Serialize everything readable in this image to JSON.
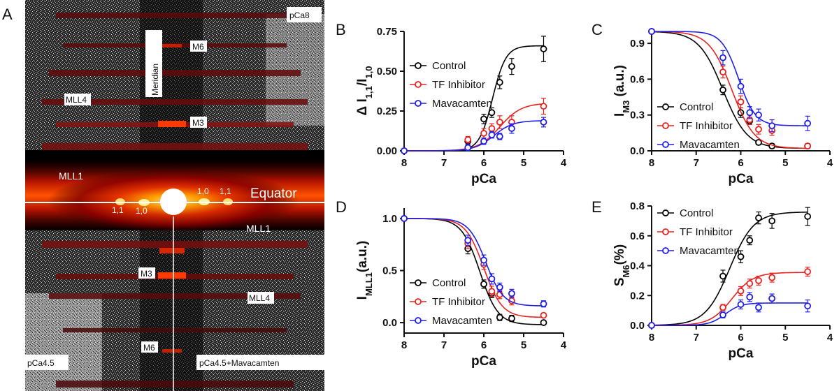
{
  "panel_labels": [
    "A",
    "B",
    "C",
    "D",
    "E"
  ],
  "xray_panel": {
    "labels": {
      "pca8": "pCa8",
      "pca45": "pCa4.5",
      "pca45_mava": "pCa4.5+Mavacamten",
      "meridian": "Meridian",
      "equator": "Equator",
      "m6_top": "M6",
      "m3_top": "M3",
      "mll4_top": "MLL4",
      "mll1_left": "MLL1",
      "mll1_right": "MLL1",
      "m3_bottom": "M3",
      "mll4_bottom": "MLL4",
      "m6_bottom": "M6",
      "r10_left": "1,0",
      "r11_left": "1,1",
      "r10_right": "1,0",
      "r11_right": "1,1"
    }
  },
  "colors": {
    "Control": "#000000",
    "TF Inhibitor": "#e8231f",
    "Mavacamten": "#1f1fe8"
  },
  "chart_data": [
    {
      "panel": "B",
      "type": "scatter",
      "xlabel": "pCa",
      "ylabel": "Δ I1,1/I1,0",
      "xlim": [
        8,
        4
      ],
      "ylim": [
        0,
        0.75
      ],
      "xticks": [
        8,
        7,
        6,
        5,
        4
      ],
      "yticks": [
        0.0,
        0.25,
        0.5,
        0.75
      ],
      "ytick_labels": [
        "0.00",
        "0.25",
        "0.50",
        "0.75"
      ],
      "legend_position": "top-left",
      "series": [
        {
          "name": "Control",
          "x": [
            8,
            6.4,
            6.0,
            5.8,
            5.6,
            5.3,
            4.5
          ],
          "y": [
            0.0,
            0.06,
            0.2,
            0.24,
            0.43,
            0.53,
            0.64
          ],
          "err": [
            0.0,
            0.02,
            0.03,
            0.03,
            0.04,
            0.05,
            0.08
          ],
          "fit": {
            "bottom": 0,
            "top": 0.66,
            "pca50": 5.78,
            "hill": 2.6
          }
        },
        {
          "name": "TF Inhibitor",
          "x": [
            8,
            6.4,
            6.0,
            5.8,
            5.6,
            5.3,
            4.5
          ],
          "y": [
            0.0,
            0.07,
            0.11,
            0.14,
            0.18,
            0.18,
            0.28
          ],
          "err": [
            0.0,
            0.02,
            0.03,
            0.03,
            0.04,
            0.04,
            0.05
          ],
          "fit": {
            "bottom": 0,
            "top": 0.3,
            "pca50": 5.6,
            "hill": 1.6
          }
        },
        {
          "name": "Mavacamten",
          "x": [
            8,
            6.4,
            6.0,
            5.8,
            5.6,
            5.3,
            4.5
          ],
          "y": [
            0.0,
            0.02,
            0.06,
            0.1,
            0.09,
            0.14,
            0.18
          ],
          "err": [
            0.0,
            0.02,
            0.02,
            0.02,
            0.02,
            0.03,
            0.03
          ],
          "fit": {
            "bottom": 0,
            "top": 0.19,
            "pca50": 5.75,
            "hill": 1.8
          }
        }
      ]
    },
    {
      "panel": "C",
      "type": "scatter",
      "xlabel": "pCa",
      "ylabel": "IM3 (a.u.)",
      "xlim": [
        8,
        4
      ],
      "ylim": [
        0,
        1.0
      ],
      "xticks": [
        8,
        7,
        6,
        5,
        4
      ],
      "yticks": [
        0.0,
        0.3,
        0.6,
        0.9
      ],
      "ytick_labels": [
        "0.0",
        "0.3",
        "0.6",
        "0.9"
      ],
      "legend_position": "bottom-left",
      "series": [
        {
          "name": "Control",
          "x": [
            8,
            6.4,
            6.0,
            5.8,
            5.6,
            5.3,
            4.5
          ],
          "y": [
            1.0,
            0.51,
            0.32,
            0.25,
            0.07,
            0.04,
            0.04
          ],
          "err": [
            0.0,
            0.04,
            0.04,
            0.03,
            0.02,
            0.02,
            0.02
          ],
          "fit": {
            "bottom": 0.02,
            "top": 1.0,
            "pca50": 6.4,
            "hill": 1.6
          }
        },
        {
          "name": "TF Inhibitor",
          "x": [
            8,
            6.4,
            6.0,
            5.8,
            5.6,
            5.3,
            4.5
          ],
          "y": [
            1.0,
            0.66,
            0.41,
            0.26,
            0.18,
            0.17,
            0.04
          ],
          "err": [
            0.0,
            0.05,
            0.05,
            0.04,
            0.04,
            0.04,
            0.02
          ],
          "fit": {
            "bottom": 0.02,
            "top": 1.0,
            "pca50": 6.2,
            "hill": 1.7
          }
        },
        {
          "name": "Mavacamten",
          "x": [
            8,
            6.4,
            6.0,
            5.8,
            5.6,
            5.3,
            4.5
          ],
          "y": [
            1.0,
            0.78,
            0.54,
            0.32,
            0.3,
            0.21,
            0.23
          ],
          "err": [
            0.0,
            0.06,
            0.06,
            0.05,
            0.05,
            0.05,
            0.06
          ],
          "fit": {
            "bottom": 0.21,
            "top": 1.0,
            "pca50": 6.05,
            "hill": 2.3
          }
        }
      ]
    },
    {
      "panel": "D",
      "type": "scatter",
      "xlabel": "pCa",
      "ylabel": "IMLL1(a.u.)",
      "xlim": [
        8,
        4
      ],
      "ylim": [
        -0.1,
        1.1
      ],
      "xticks": [
        8,
        7,
        6,
        5,
        4
      ],
      "yticks": [
        0.0,
        0.5,
        1.0
      ],
      "ytick_labels": [
        "0.0",
        "0.5",
        "1.0"
      ],
      "legend_position": "bottom-left",
      "series": [
        {
          "name": "Control",
          "x": [
            8,
            6.4,
            6.0,
            5.8,
            5.6,
            5.3,
            4.5
          ],
          "y": [
            1.0,
            0.71,
            0.37,
            0.28,
            0.05,
            0.04,
            0.0
          ],
          "err": [
            0.0,
            0.05,
            0.04,
            0.04,
            0.03,
            0.03,
            0.02
          ],
          "fit": {
            "bottom": -0.02,
            "top": 1.0,
            "pca50": 6.1,
            "hill": 1.9
          }
        },
        {
          "name": "TF Inhibitor",
          "x": [
            8,
            6.4,
            6.0,
            5.8,
            5.6,
            5.3,
            4.5
          ],
          "y": [
            1.0,
            0.76,
            0.56,
            0.3,
            0.27,
            0.21,
            0.07
          ],
          "err": [
            0.0,
            0.05,
            0.05,
            0.05,
            0.04,
            0.04,
            0.02
          ],
          "fit": {
            "bottom": 0.05,
            "top": 1.0,
            "pca50": 6.0,
            "hill": 1.9
          }
        },
        {
          "name": "Mavacamten",
          "x": [
            8,
            6.4,
            6.0,
            5.8,
            5.6,
            5.3,
            4.5
          ],
          "y": [
            1.0,
            0.79,
            0.6,
            0.42,
            0.34,
            0.28,
            0.18
          ],
          "err": [
            0.0,
            0.05,
            0.05,
            0.05,
            0.04,
            0.04,
            0.03
          ],
          "fit": {
            "bottom": 0.16,
            "top": 1.0,
            "pca50": 5.95,
            "hill": 2.0
          }
        }
      ]
    },
    {
      "panel": "E",
      "type": "scatter",
      "xlabel": "pCa",
      "ylabel": "SM6(%)",
      "xlim": [
        8,
        4
      ],
      "ylim": [
        0,
        0.8
      ],
      "xticks": [
        8,
        7,
        6,
        5,
        4
      ],
      "yticks": [
        0.0,
        0.2,
        0.4,
        0.6,
        0.8
      ],
      "ytick_labels": [
        "0.0",
        "0.2",
        "0.4",
        "0.6",
        "0.8"
      ],
      "legend_position": "top-left",
      "series": [
        {
          "name": "Control",
          "x": [
            8,
            6.4,
            6.0,
            5.8,
            5.6,
            5.3,
            4.5
          ],
          "y": [
            0.0,
            0.33,
            0.46,
            0.57,
            0.72,
            0.7,
            0.73
          ],
          "err": [
            0.0,
            0.04,
            0.04,
            0.03,
            0.04,
            0.05,
            0.06
          ],
          "fit": {
            "bottom": 0,
            "top": 0.76,
            "pca50": 6.25,
            "hill": 1.6
          }
        },
        {
          "name": "TF Inhibitor",
          "x": [
            8,
            6.4,
            6.0,
            5.8,
            5.6,
            5.3,
            4.5
          ],
          "y": [
            0.0,
            0.12,
            0.23,
            0.28,
            0.3,
            0.32,
            0.36
          ],
          "err": [
            0.0,
            0.02,
            0.03,
            0.03,
            0.03,
            0.03,
            0.03
          ],
          "fit": {
            "bottom": 0,
            "top": 0.355,
            "pca50": 6.2,
            "hill": 1.8
          }
        },
        {
          "name": "Mavacamten",
          "x": [
            8,
            6.4,
            6.0,
            5.8,
            5.6,
            5.3,
            4.5
          ],
          "y": [
            0.0,
            0.07,
            0.14,
            0.19,
            0.12,
            0.18,
            0.13
          ],
          "err": [
            0.0,
            0.02,
            0.03,
            0.03,
            0.03,
            0.03,
            0.04
          ],
          "fit": {
            "bottom": 0,
            "top": 0.15,
            "pca50": 6.35,
            "hill": 2.5
          }
        }
      ]
    }
  ]
}
